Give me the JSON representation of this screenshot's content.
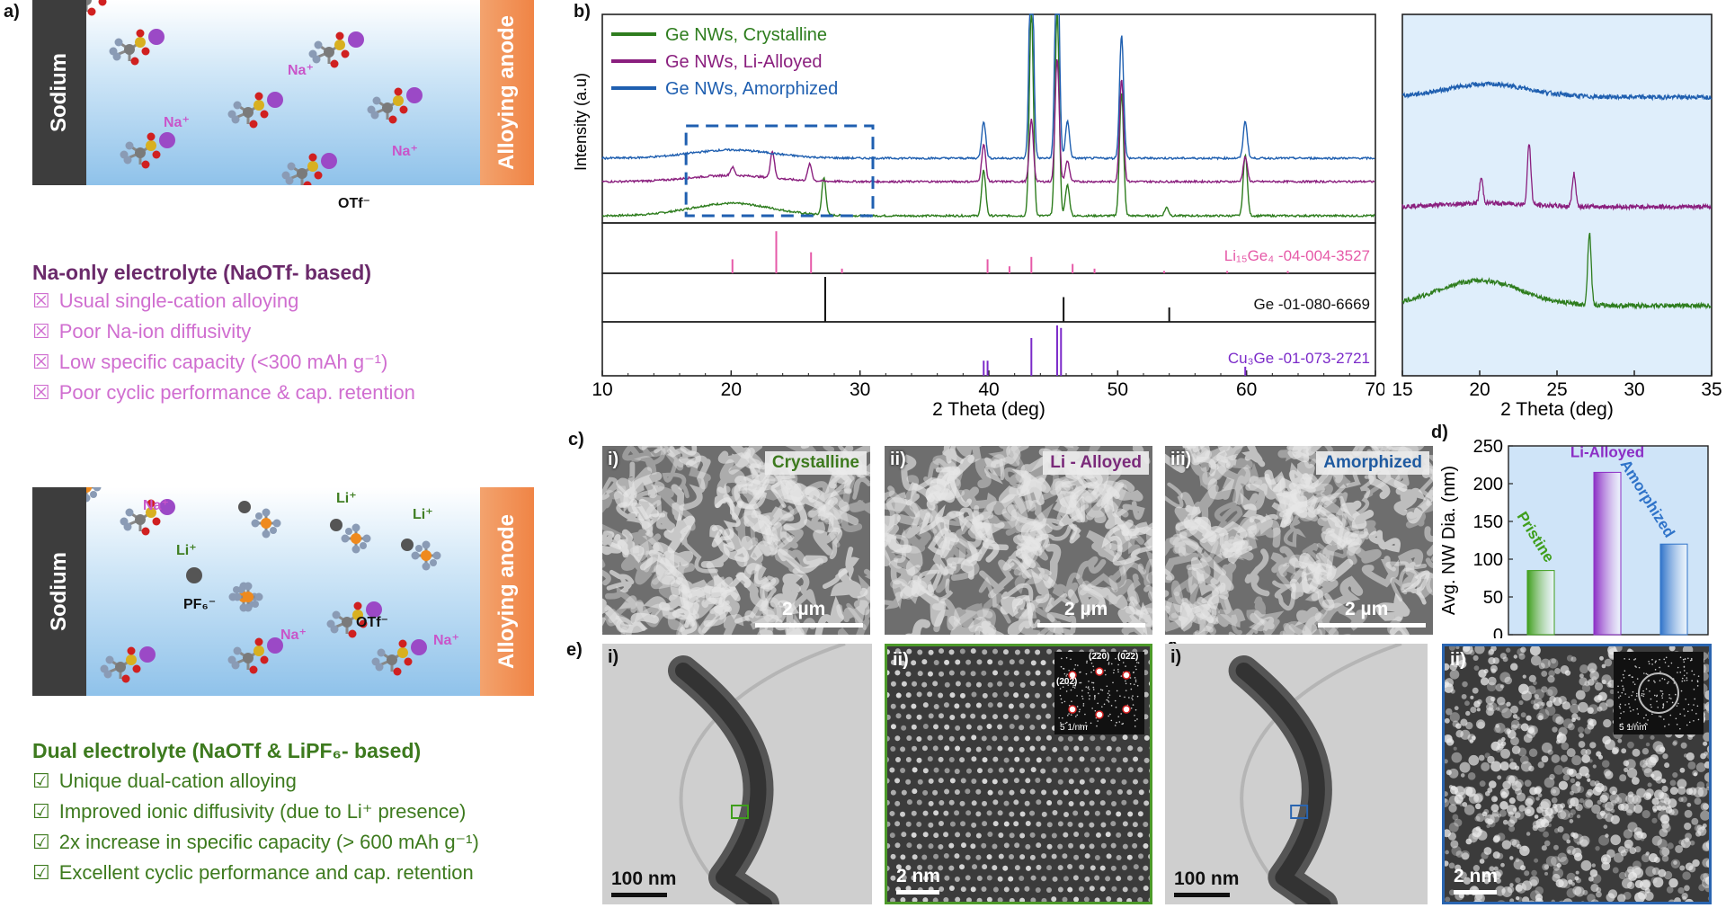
{
  "figure": {
    "panel_labels": {
      "a": "a)",
      "b": "b)",
      "c": "c)",
      "d": "d)",
      "e": "e)",
      "f": "f)"
    },
    "panel_a": {
      "sodium_label": "Sodium",
      "anode_label": "Alloying anode",
      "top": {
        "ions": [
          "Na⁺",
          "Na⁺",
          "Na⁺"
        ],
        "anion": "OTf⁻",
        "title": "Na-only electrolyte (NaOTf- based)",
        "items": [
          "Usual single-cation alloying",
          "Poor Na-ion diffusivity",
          "Low specific capacity (<300 mAh g⁻¹)",
          "Poor cyclic performance & cap. retention"
        ]
      },
      "bottom": {
        "na_ions": [
          "Na⁺",
          "Na⁺",
          "Na⁺"
        ],
        "li_ions": [
          "Li⁺",
          "Li⁺",
          "Li⁺"
        ],
        "pf6": "PF₆⁻",
        "otf": "OTf⁻",
        "title": "Dual electrolyte (NaOTf & LiPF₆- based)",
        "items": [
          "Unique dual-cation alloying",
          "Improved ionic diffusivity (due to Li⁺ presence)",
          "2x increase in specific capacity (> 600 mAh g⁻¹)",
          "Excellent cyclic performance and cap. retention"
        ]
      },
      "colors": {
        "na_title": "#6b2a6b",
        "na_items": "#d06ed0",
        "dual_title": "#3d7a1e",
        "dual_items": "#3d7a1e"
      }
    },
    "panel_c": {
      "images": [
        {
          "num": "i)",
          "label": "Crystalline",
          "scale": "2 µm",
          "color": "#3d7a1e"
        },
        {
          "num": "ii)",
          "label": "Li - Alloyed",
          "scale": "2 µm",
          "color": "#7a2a7a"
        },
        {
          "num": "iii)",
          "label": "Amorphized",
          "scale": "2 µm",
          "color": "#1f5aa0"
        }
      ]
    },
    "panel_e": {
      "images": [
        {
          "num": "i)",
          "scale": "100 nm"
        },
        {
          "num": "ii)",
          "scale": "2 nm",
          "fft_labels": [
            "(2̄20)",
            "(202̄)",
            "(02̄2)"
          ],
          "fft_scale": "5 1/nm"
        }
      ]
    },
    "panel_f": {
      "images": [
        {
          "num": "i)",
          "scale": "100 nm"
        },
        {
          "num": "ii)",
          "scale": "2 nm",
          "fft_scale": "5 1/nm"
        }
      ]
    }
  },
  "chart_data": [
    {
      "type": "line",
      "id": "xrd_main",
      "title": "",
      "xlabel": "2 Theta (deg)",
      "ylabel": "Intensity (a.u)",
      "xlim": [
        10,
        70
      ],
      "xticks": [
        10,
        20,
        30,
        40,
        50,
        60,
        70
      ],
      "legend": [
        "Ge NWs, Crystalline",
        "Ge NWs, Li-Alloyed",
        "Ge NWs, Amorphized"
      ],
      "series": [
        {
          "name": "Ge NWs, Crystalline",
          "color": "#2e7d1e",
          "baseline": 0.0,
          "broad_hump": {
            "center": 20,
            "height": 0.06
          },
          "peaks": [
            [
              27.2,
              0.18
            ],
            [
              39.6,
              0.22
            ],
            [
              43.3,
              1.0
            ],
            [
              45.3,
              1.0
            ],
            [
              46.1,
              0.15
            ],
            [
              50.3,
              0.6
            ],
            [
              53.8,
              0.04
            ],
            [
              59.9,
              0.3
            ]
          ]
        },
        {
          "name": "Ge NWs, Li-Alloyed",
          "color": "#8a1f7e",
          "baseline": 0.0,
          "broad_hump": {
            "center": 20,
            "height": 0.03
          },
          "peaks": [
            [
              20.1,
              0.04
            ],
            [
              23.2,
              0.13
            ],
            [
              26.1,
              0.08
            ],
            [
              39.6,
              0.18
            ],
            [
              43.3,
              0.3
            ],
            [
              45.3,
              0.6
            ],
            [
              46.1,
              0.1
            ],
            [
              50.3,
              0.5
            ],
            [
              59.9,
              0.12
            ]
          ]
        },
        {
          "name": "Ge NWs, Amorphized",
          "color": "#1f5fb0",
          "baseline": 0.0,
          "broad_hump": {
            "center": 20,
            "height": 0.04
          },
          "peaks": [
            [
              39.6,
              0.18
            ],
            [
              43.3,
              1.2
            ],
            [
              45.3,
              1.2
            ],
            [
              46.1,
              0.18
            ],
            [
              50.3,
              0.6
            ],
            [
              59.9,
              0.18
            ]
          ]
        }
      ],
      "references": [
        {
          "name": "Li₁₅Ge₄ -04-004-3527",
          "color": "#e65aa8",
          "lines": [
            [
              20.1,
              0.3
            ],
            [
              23.5,
              0.9
            ],
            [
              26.2,
              0.45
            ],
            [
              28.6,
              0.1
            ],
            [
              39.9,
              0.3
            ],
            [
              41.6,
              0.15
            ],
            [
              43.3,
              0.35
            ],
            [
              46.5,
              0.2
            ],
            [
              48.2,
              0.1
            ],
            [
              53.6,
              0.05
            ],
            [
              58.5,
              0.05
            ],
            [
              63.2,
              0.05
            ]
          ]
        },
        {
          "name": "Ge -01-080-6669",
          "color": "#111111",
          "lines": [
            [
              27.3,
              1.0
            ],
            [
              45.8,
              0.55
            ],
            [
              54.0,
              0.32
            ]
          ]
        },
        {
          "name": "Cu₃Ge -01-073-2721",
          "color": "#7b2ac9",
          "lines": [
            [
              39.6,
              0.3
            ],
            [
              39.9,
              0.3
            ],
            [
              43.3,
              0.75
            ],
            [
              45.3,
              1.0
            ],
            [
              45.6,
              0.95
            ],
            [
              59.9,
              0.18
            ]
          ]
        }
      ]
    },
    {
      "type": "line",
      "id": "xrd_zoom",
      "xlabel": "2 Theta (deg)",
      "xlim": [
        15,
        35
      ],
      "xticks": [
        15,
        20,
        25,
        30,
        35
      ],
      "series": [
        {
          "name": "Amorphized",
          "color": "#1f5fb0",
          "broad_hump": {
            "center": 20.5,
            "height": 0.18
          },
          "peaks": []
        },
        {
          "name": "Li-Alloyed",
          "color": "#8a1f7e",
          "broad_hump": {
            "center": 20.5,
            "height": 0.05
          },
          "peaks": [
            [
              20.1,
              0.35
            ],
            [
              23.2,
              0.85
            ],
            [
              26.1,
              0.45
            ]
          ]
        },
        {
          "name": "Crystalline",
          "color": "#2e7d1e",
          "broad_hump": {
            "center": 20.0,
            "height": 0.35
          },
          "peaks": [
            [
              27.1,
              1.0
            ]
          ]
        }
      ]
    },
    {
      "type": "bar",
      "id": "nw_diameter",
      "ylabel": "Avg. NW Dia. (nm)",
      "ylim": [
        0,
        250
      ],
      "yticks": [
        0,
        50,
        100,
        150,
        200,
        250
      ],
      "categories": [
        "Pristine",
        "Li-Alloyed",
        "Amorphized"
      ],
      "values": [
        85,
        215,
        120
      ],
      "colors": [
        "#3f9e1c",
        "#8b2ec5",
        "#2f73c9"
      ],
      "label_colors": [
        "#3f9e1c",
        "#8b2ec5",
        "#2f73c9"
      ]
    }
  ]
}
